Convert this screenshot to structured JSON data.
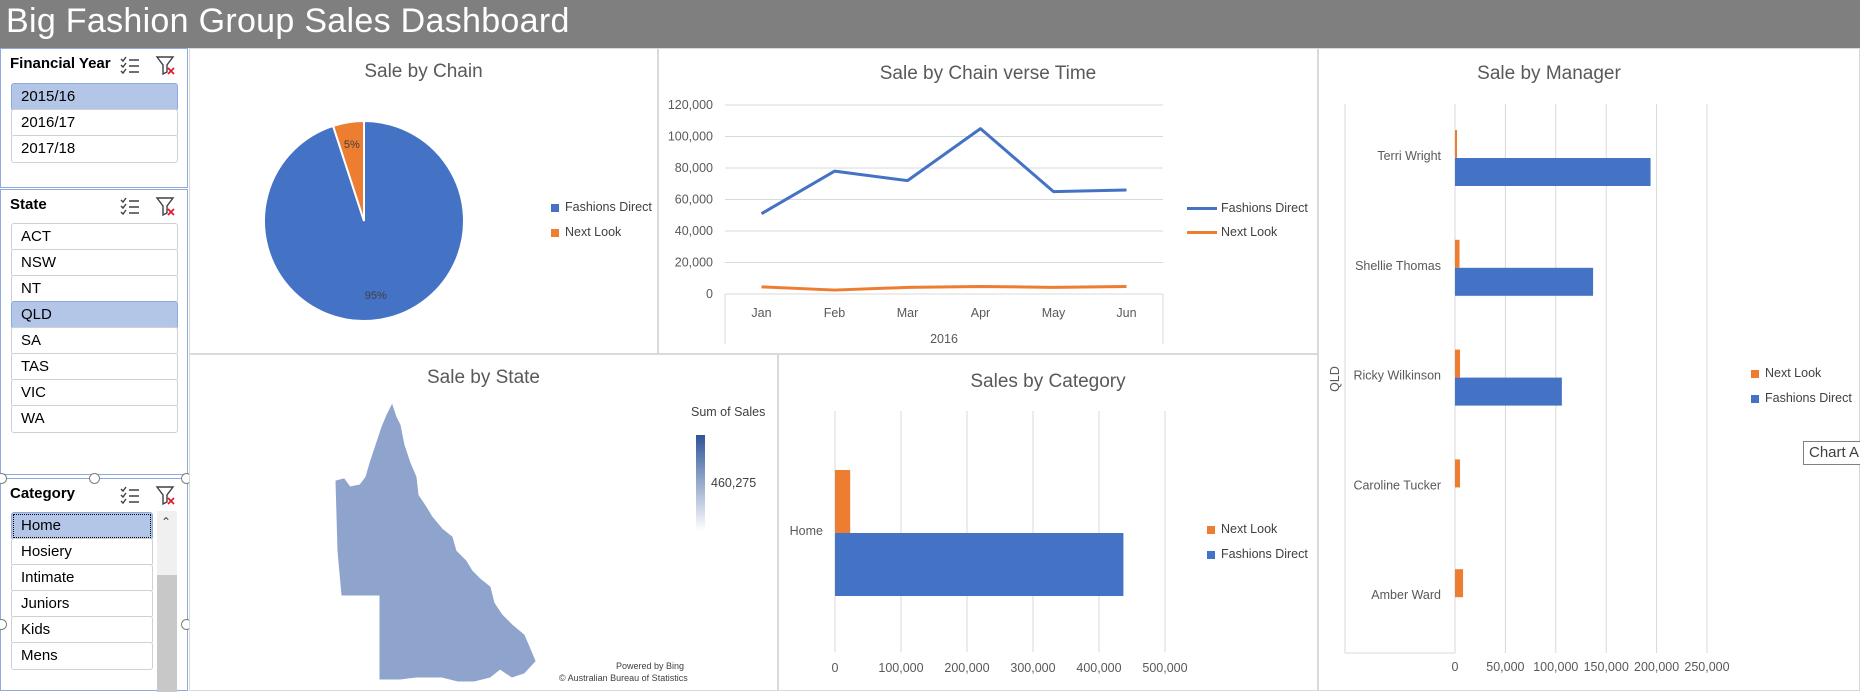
{
  "dashboard_title": "Big Fashion Group Sales Dashboard",
  "slicers": {
    "financial_year": {
      "header": "Financial Year",
      "items": [
        {
          "label": "2015/16",
          "selected": true
        },
        {
          "label": "2016/17",
          "selected": false
        },
        {
          "label": "2017/18",
          "selected": false
        }
      ]
    },
    "state": {
      "header": "State",
      "items": [
        {
          "label": "ACT",
          "selected": false
        },
        {
          "label": "NSW",
          "selected": false
        },
        {
          "label": "NT",
          "selected": false
        },
        {
          "label": "QLD",
          "selected": true
        },
        {
          "label": "SA",
          "selected": false
        },
        {
          "label": "TAS",
          "selected": false
        },
        {
          "label": "VIC",
          "selected": false
        },
        {
          "label": "WA",
          "selected": false
        }
      ]
    },
    "category": {
      "header": "Category",
      "items": [
        {
          "label": "Home",
          "selected": true
        },
        {
          "label": "Hosiery",
          "selected": false
        },
        {
          "label": "Intimate",
          "selected": false
        },
        {
          "label": "Juniors",
          "selected": false
        },
        {
          "label": "Kids",
          "selected": false
        },
        {
          "label": "Mens",
          "selected": false
        }
      ]
    }
  },
  "map": {
    "sum_label": "Sum of Sales",
    "value": "460,275",
    "powered": "Powered by Bing",
    "copyright": "© Australian Bureau of Statistics"
  },
  "tooltip": "Chart Area",
  "colors": {
    "fashions_direct": "#4472c4",
    "next_look": "#ed7d31",
    "selected": "#b4c6e7"
  },
  "chart_data": [
    {
      "type": "pie",
      "title": "Sale by Chain",
      "categories": [
        "Fashions Direct",
        "Next Look"
      ],
      "values": [
        95,
        5
      ],
      "labels": [
        "95%",
        "5%"
      ],
      "legend": [
        "Fashions Direct",
        "Next Look"
      ]
    },
    {
      "type": "line",
      "title": "Sale by Chain verse Time",
      "categories": [
        "Jan",
        "Feb",
        "Mar",
        "Apr",
        "May",
        "Jun"
      ],
      "group_label": "2016",
      "series": [
        {
          "name": "Fashions Direct",
          "values": [
            51000,
            78000,
            72000,
            105000,
            65000,
            66000
          ]
        },
        {
          "name": "Next Look",
          "values": [
            4500,
            2500,
            4200,
            4800,
            4200,
            4800
          ]
        }
      ],
      "ylim": [
        0,
        120000
      ],
      "yticks": [
        "0",
        "20,000",
        "40,000",
        "60,000",
        "80,000",
        "100,000",
        "120,000"
      ]
    },
    {
      "type": "bar",
      "title": "Sales by Category",
      "categories": [
        "Home"
      ],
      "series": [
        {
          "name": "Next Look",
          "values": [
            23000
          ]
        },
        {
          "name": "Fashions Direct",
          "values": [
            437000
          ]
        }
      ],
      "xlim": [
        0,
        500000
      ],
      "xticks": [
        "0",
        "100,000",
        "200,000",
        "300,000",
        "400,000",
        "500,000"
      ],
      "legend": [
        "Next Look",
        "Fashions Direct"
      ]
    },
    {
      "type": "bar",
      "title": "Sale by Manager",
      "group_label": "QLD",
      "categories": [
        "Terri Wright",
        "Shellie Thomas",
        "Ricky Wilkinson",
        "Caroline Tucker",
        "Amber Ward"
      ],
      "series": [
        {
          "name": "Next Look",
          "values": [
            2000,
            4500,
            5000,
            5000,
            8000
          ]
        },
        {
          "name": "Fashions Direct",
          "values": [
            194000,
            137000,
            106000,
            0,
            0
          ]
        }
      ],
      "xlim": [
        0,
        250000
      ],
      "xticks": [
        "0",
        "50,000",
        "100,000",
        "150,000",
        "200,000",
        "250,000"
      ],
      "legend": [
        "Next Look",
        "Fashions Direct"
      ]
    }
  ]
}
